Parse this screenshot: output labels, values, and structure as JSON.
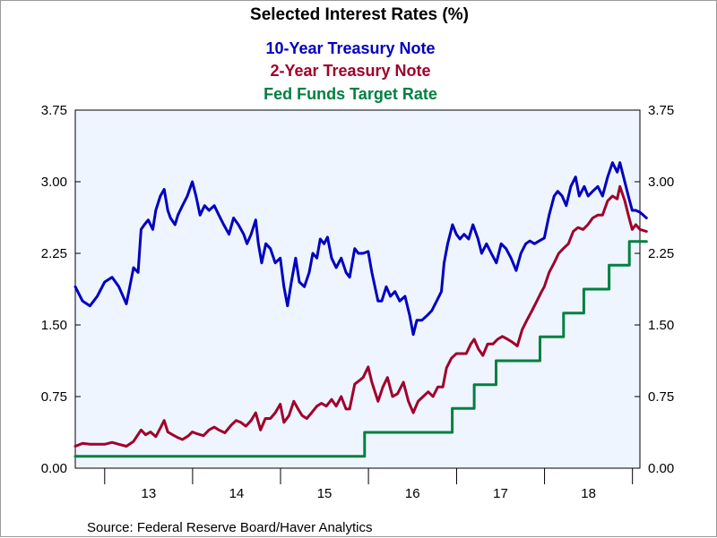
{
  "colors": {
    "plot_background": "#eef5ff",
    "ten_year": "#0000c0",
    "two_year": "#a0002a",
    "fed_funds": "#008040"
  },
  "source": "Source:  Federal Reserve Board/Haver Analytics",
  "chart_data": {
    "type": "line",
    "title": "Selected Interest Rates (%)",
    "legend_placement": "top-center",
    "grid": false,
    "x_ticks": [
      "13",
      "14",
      "15",
      "16",
      "17",
      "18"
    ],
    "xlim": [
      "2012-09",
      "2019-02"
    ],
    "ylim": [
      0,
      3.75
    ],
    "y_ticks": [
      "0.00",
      "0.75",
      "1.50",
      "2.25",
      "3.00",
      "3.75"
    ],
    "y_tick_values": [
      0,
      0.75,
      1.5,
      2.25,
      3.0,
      3.75
    ],
    "series": [
      {
        "name": "10-Year Treasury Note",
        "color_key": "ten_year",
        "points": [
          [
            "2012-09-01",
            1.9
          ],
          [
            "2012-10-01",
            1.75
          ],
          [
            "2012-11-01",
            1.7
          ],
          [
            "2012-12-01",
            1.8
          ],
          [
            "2013-01-01",
            1.95
          ],
          [
            "2013-02-01",
            2.0
          ],
          [
            "2013-03-01",
            1.9
          ],
          [
            "2013-04-01",
            1.72
          ],
          [
            "2013-05-01",
            2.1
          ],
          [
            "2013-05-20",
            2.05
          ],
          [
            "2013-06-01",
            2.5
          ],
          [
            "2013-06-15",
            2.55
          ],
          [
            "2013-07-01",
            2.6
          ],
          [
            "2013-07-20",
            2.5
          ],
          [
            "2013-08-01",
            2.7
          ],
          [
            "2013-08-20",
            2.85
          ],
          [
            "2013-09-05",
            2.92
          ],
          [
            "2013-09-20",
            2.7
          ],
          [
            "2013-10-01",
            2.62
          ],
          [
            "2013-10-20",
            2.55
          ],
          [
            "2013-11-01",
            2.65
          ],
          [
            "2013-11-20",
            2.75
          ],
          [
            "2013-12-10",
            2.85
          ],
          [
            "2013-12-31",
            3.0
          ],
          [
            "2014-01-15",
            2.85
          ],
          [
            "2014-02-01",
            2.65
          ],
          [
            "2014-02-20",
            2.75
          ],
          [
            "2014-03-10",
            2.7
          ],
          [
            "2014-04-01",
            2.75
          ],
          [
            "2014-04-20",
            2.65
          ],
          [
            "2014-05-10",
            2.55
          ],
          [
            "2014-06-01",
            2.45
          ],
          [
            "2014-06-20",
            2.62
          ],
          [
            "2014-07-10",
            2.55
          ],
          [
            "2014-08-01",
            2.45
          ],
          [
            "2014-08-15",
            2.35
          ],
          [
            "2014-09-01",
            2.45
          ],
          [
            "2014-09-20",
            2.6
          ],
          [
            "2014-10-01",
            2.35
          ],
          [
            "2014-10-15",
            2.15
          ],
          [
            "2014-11-01",
            2.35
          ],
          [
            "2014-11-20",
            2.3
          ],
          [
            "2014-12-10",
            2.15
          ],
          [
            "2014-12-31",
            2.2
          ],
          [
            "2015-01-15",
            1.9
          ],
          [
            "2015-01-30",
            1.7
          ],
          [
            "2015-02-15",
            1.95
          ],
          [
            "2015-03-05",
            2.2
          ],
          [
            "2015-03-20",
            1.95
          ],
          [
            "2015-04-10",
            1.9
          ],
          [
            "2015-04-30",
            2.05
          ],
          [
            "2015-05-15",
            2.25
          ],
          [
            "2015-06-01",
            2.2
          ],
          [
            "2015-06-15",
            2.4
          ],
          [
            "2015-07-01",
            2.35
          ],
          [
            "2015-07-15",
            2.42
          ],
          [
            "2015-08-01",
            2.2
          ],
          [
            "2015-08-20",
            2.1
          ],
          [
            "2015-09-10",
            2.2
          ],
          [
            "2015-09-30",
            2.05
          ],
          [
            "2015-10-15",
            2.0
          ],
          [
            "2015-11-05",
            2.3
          ],
          [
            "2015-11-20",
            2.25
          ],
          [
            "2015-12-10",
            2.25
          ],
          [
            "2015-12-31",
            2.27
          ],
          [
            "2016-01-15",
            2.05
          ],
          [
            "2016-02-10",
            1.75
          ],
          [
            "2016-02-25",
            1.75
          ],
          [
            "2016-03-15",
            1.9
          ],
          [
            "2016-04-01",
            1.8
          ],
          [
            "2016-04-20",
            1.85
          ],
          [
            "2016-05-10",
            1.75
          ],
          [
            "2016-06-01",
            1.8
          ],
          [
            "2016-06-20",
            1.6
          ],
          [
            "2016-07-05",
            1.4
          ],
          [
            "2016-07-20",
            1.55
          ],
          [
            "2016-08-10",
            1.55
          ],
          [
            "2016-09-01",
            1.6
          ],
          [
            "2016-09-20",
            1.65
          ],
          [
            "2016-10-10",
            1.75
          ],
          [
            "2016-10-30",
            1.85
          ],
          [
            "2016-11-10",
            2.15
          ],
          [
            "2016-11-25",
            2.35
          ],
          [
            "2016-12-15",
            2.55
          ],
          [
            "2016-12-31",
            2.45
          ],
          [
            "2017-01-15",
            2.4
          ],
          [
            "2017-02-01",
            2.45
          ],
          [
            "2017-02-20",
            2.4
          ],
          [
            "2017-03-10",
            2.55
          ],
          [
            "2017-03-31",
            2.4
          ],
          [
            "2017-04-15",
            2.25
          ],
          [
            "2017-05-05",
            2.35
          ],
          [
            "2017-05-25",
            2.25
          ],
          [
            "2017-06-15",
            2.15
          ],
          [
            "2017-07-05",
            2.35
          ],
          [
            "2017-07-25",
            2.3
          ],
          [
            "2017-08-15",
            2.2
          ],
          [
            "2017-09-05",
            2.07
          ],
          [
            "2017-09-25",
            2.25
          ],
          [
            "2017-10-15",
            2.35
          ],
          [
            "2017-11-01",
            2.38
          ],
          [
            "2017-11-20",
            2.35
          ],
          [
            "2017-12-10",
            2.38
          ],
          [
            "2017-12-31",
            2.41
          ],
          [
            "2018-01-20",
            2.65
          ],
          [
            "2018-02-10",
            2.85
          ],
          [
            "2018-02-25",
            2.9
          ],
          [
            "2018-03-15",
            2.85
          ],
          [
            "2018-04-01",
            2.75
          ],
          [
            "2018-04-20",
            2.95
          ],
          [
            "2018-05-10",
            3.05
          ],
          [
            "2018-05-25",
            2.85
          ],
          [
            "2018-06-15",
            2.95
          ],
          [
            "2018-07-01",
            2.85
          ],
          [
            "2018-07-20",
            2.9
          ],
          [
            "2018-08-10",
            2.95
          ],
          [
            "2018-08-30",
            2.85
          ],
          [
            "2018-09-20",
            3.05
          ],
          [
            "2018-10-10",
            3.2
          ],
          [
            "2018-10-30",
            3.1
          ],
          [
            "2018-11-10",
            3.2
          ],
          [
            "2018-11-30",
            3.0
          ],
          [
            "2018-12-15",
            2.85
          ],
          [
            "2018-12-31",
            2.7
          ],
          [
            "2019-01-15",
            2.7
          ],
          [
            "2019-02-01",
            2.68
          ],
          [
            "2019-02-15",
            2.65
          ],
          [
            "2019-02-28",
            2.62
          ]
        ]
      },
      {
        "name": "2-Year Treasury Note",
        "color_key": "two_year",
        "points": [
          [
            "2012-09-01",
            0.23
          ],
          [
            "2012-10-01",
            0.26
          ],
          [
            "2012-11-01",
            0.25
          ],
          [
            "2012-12-01",
            0.25
          ],
          [
            "2013-01-01",
            0.25
          ],
          [
            "2013-02-01",
            0.27
          ],
          [
            "2013-03-01",
            0.25
          ],
          [
            "2013-04-01",
            0.23
          ],
          [
            "2013-05-01",
            0.28
          ],
          [
            "2013-06-01",
            0.4
          ],
          [
            "2013-06-20",
            0.35
          ],
          [
            "2013-07-10",
            0.38
          ],
          [
            "2013-08-01",
            0.33
          ],
          [
            "2013-08-20",
            0.42
          ],
          [
            "2013-09-05",
            0.5
          ],
          [
            "2013-09-20",
            0.38
          ],
          [
            "2013-10-10",
            0.35
          ],
          [
            "2013-11-01",
            0.32
          ],
          [
            "2013-11-20",
            0.3
          ],
          [
            "2013-12-15",
            0.34
          ],
          [
            "2013-12-31",
            0.38
          ],
          [
            "2014-01-20",
            0.36
          ],
          [
            "2014-02-15",
            0.34
          ],
          [
            "2014-03-10",
            0.4
          ],
          [
            "2014-04-01",
            0.43
          ],
          [
            "2014-04-20",
            0.4
          ],
          [
            "2014-05-15",
            0.37
          ],
          [
            "2014-06-10",
            0.45
          ],
          [
            "2014-07-01",
            0.5
          ],
          [
            "2014-07-20",
            0.48
          ],
          [
            "2014-08-10",
            0.44
          ],
          [
            "2014-09-01",
            0.5
          ],
          [
            "2014-09-20",
            0.58
          ],
          [
            "2014-10-10",
            0.4
          ],
          [
            "2014-10-30",
            0.52
          ],
          [
            "2014-11-20",
            0.52
          ],
          [
            "2014-12-10",
            0.58
          ],
          [
            "2014-12-31",
            0.67
          ],
          [
            "2015-01-15",
            0.48
          ],
          [
            "2015-02-05",
            0.55
          ],
          [
            "2015-02-25",
            0.7
          ],
          [
            "2015-03-15",
            0.62
          ],
          [
            "2015-04-01",
            0.55
          ],
          [
            "2015-04-20",
            0.52
          ],
          [
            "2015-05-10",
            0.58
          ],
          [
            "2015-06-01",
            0.65
          ],
          [
            "2015-06-20",
            0.68
          ],
          [
            "2015-07-10",
            0.65
          ],
          [
            "2015-08-01",
            0.72
          ],
          [
            "2015-08-20",
            0.65
          ],
          [
            "2015-09-10",
            0.75
          ],
          [
            "2015-09-30",
            0.62
          ],
          [
            "2015-10-15",
            0.62
          ],
          [
            "2015-11-05",
            0.88
          ],
          [
            "2015-11-25",
            0.92
          ],
          [
            "2015-12-10",
            0.95
          ],
          [
            "2015-12-31",
            1.06
          ],
          [
            "2016-01-15",
            0.9
          ],
          [
            "2016-02-10",
            0.7
          ],
          [
            "2016-03-01",
            0.85
          ],
          [
            "2016-03-20",
            0.95
          ],
          [
            "2016-04-10",
            0.75
          ],
          [
            "2016-05-01",
            0.78
          ],
          [
            "2016-05-25",
            0.9
          ],
          [
            "2016-06-15",
            0.7
          ],
          [
            "2016-07-05",
            0.58
          ],
          [
            "2016-07-25",
            0.7
          ],
          [
            "2016-08-15",
            0.75
          ],
          [
            "2016-09-05",
            0.8
          ],
          [
            "2016-09-25",
            0.75
          ],
          [
            "2016-10-15",
            0.85
          ],
          [
            "2016-11-05",
            0.85
          ],
          [
            "2016-11-20",
            1.05
          ],
          [
            "2016-12-10",
            1.15
          ],
          [
            "2016-12-31",
            1.2
          ],
          [
            "2017-01-20",
            1.2
          ],
          [
            "2017-02-10",
            1.2
          ],
          [
            "2017-03-01",
            1.3
          ],
          [
            "2017-03-15",
            1.35
          ],
          [
            "2017-04-01",
            1.25
          ],
          [
            "2017-04-20",
            1.18
          ],
          [
            "2017-05-10",
            1.3
          ],
          [
            "2017-06-01",
            1.3
          ],
          [
            "2017-06-20",
            1.35
          ],
          [
            "2017-07-10",
            1.38
          ],
          [
            "2017-08-01",
            1.35
          ],
          [
            "2017-08-20",
            1.32
          ],
          [
            "2017-09-10",
            1.28
          ],
          [
            "2017-09-30",
            1.45
          ],
          [
            "2017-10-20",
            1.55
          ],
          [
            "2017-11-10",
            1.65
          ],
          [
            "2017-11-30",
            1.75
          ],
          [
            "2017-12-20",
            1.85
          ],
          [
            "2017-12-31",
            1.9
          ],
          [
            "2018-01-20",
            2.05
          ],
          [
            "2018-02-10",
            2.15
          ],
          [
            "2018-03-01",
            2.25
          ],
          [
            "2018-03-20",
            2.3
          ],
          [
            "2018-04-10",
            2.35
          ],
          [
            "2018-04-30",
            2.48
          ],
          [
            "2018-05-20",
            2.52
          ],
          [
            "2018-06-10",
            2.5
          ],
          [
            "2018-06-30",
            2.55
          ],
          [
            "2018-07-20",
            2.62
          ],
          [
            "2018-08-10",
            2.65
          ],
          [
            "2018-08-30",
            2.65
          ],
          [
            "2018-09-20",
            2.8
          ],
          [
            "2018-10-10",
            2.85
          ],
          [
            "2018-10-30",
            2.82
          ],
          [
            "2018-11-10",
            2.95
          ],
          [
            "2018-11-30",
            2.8
          ],
          [
            "2018-12-15",
            2.65
          ],
          [
            "2018-12-31",
            2.5
          ],
          [
            "2019-01-15",
            2.55
          ],
          [
            "2019-02-01",
            2.5
          ],
          [
            "2019-02-28",
            2.48
          ]
        ]
      },
      {
        "name": "Fed Funds Target Rate",
        "color_key": "fed_funds",
        "step": true,
        "points": [
          [
            "2012-09-01",
            0.125
          ],
          [
            "2015-12-16",
            0.375
          ],
          [
            "2016-12-14",
            0.625
          ],
          [
            "2017-03-15",
            0.875
          ],
          [
            "2017-06-14",
            1.125
          ],
          [
            "2017-12-13",
            1.375
          ],
          [
            "2018-03-21",
            1.625
          ],
          [
            "2018-06-13",
            1.875
          ],
          [
            "2018-09-26",
            2.125
          ],
          [
            "2018-12-19",
            2.375
          ],
          [
            "2019-02-28",
            2.375
          ]
        ]
      }
    ]
  }
}
